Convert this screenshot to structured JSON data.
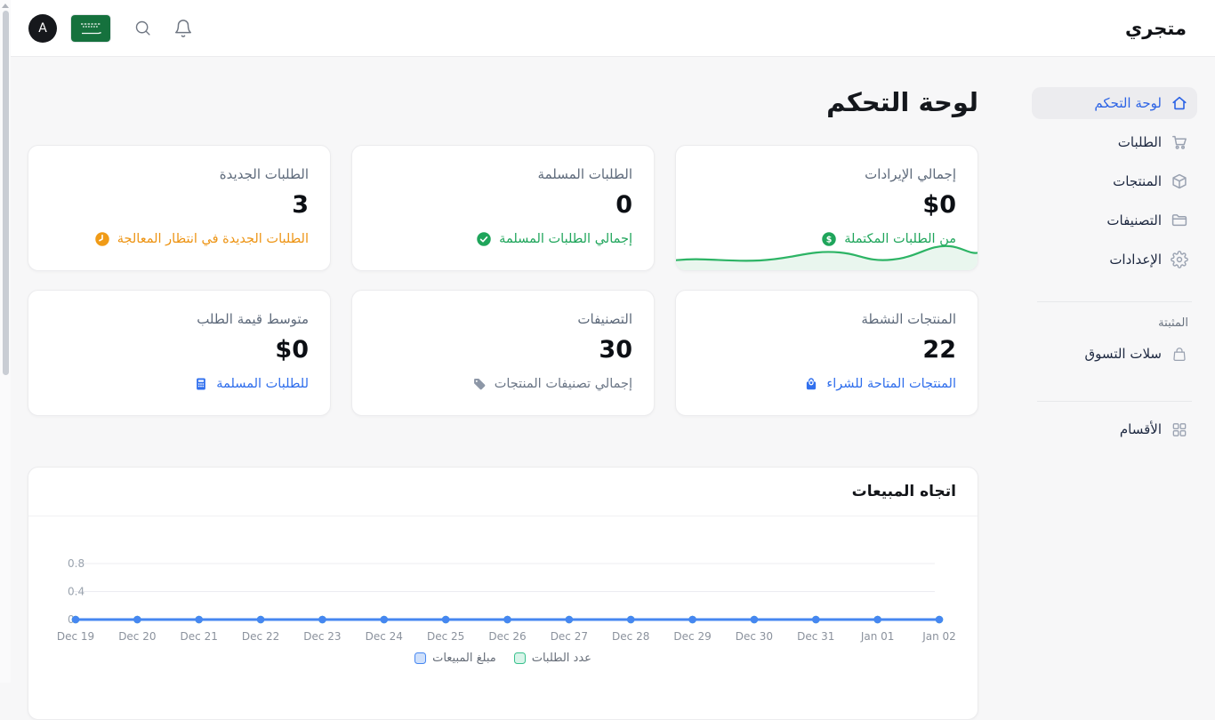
{
  "topbar": {
    "store_title": "متجري",
    "avatar_letter": "A",
    "flag": "saudi-arabia"
  },
  "sidebar": {
    "items": [
      {
        "label": "لوحة التحكم",
        "icon": "home",
        "active": true
      },
      {
        "label": "الطلبات",
        "icon": "cart",
        "active": false
      },
      {
        "label": "المنتجات",
        "icon": "box",
        "active": false
      },
      {
        "label": "التصنيفات",
        "icon": "folder",
        "active": false
      },
      {
        "label": "الإعدادات",
        "icon": "gear",
        "active": false
      }
    ],
    "pinned_section_label": "المثبتة",
    "pinned_items": [
      {
        "label": "سلات التسوق",
        "icon": "shopping-bag"
      }
    ],
    "bottom_items": [
      {
        "label": "الأقسام",
        "icon": "grid"
      }
    ]
  },
  "page": {
    "title": "لوحة التحكم"
  },
  "stat_cards": [
    {
      "title": "إجمالي الإيرادات",
      "value": "$0",
      "subtitle": "من الطلبات المكتملة",
      "icon": "dollar-circle",
      "accent": "#1fa55b"
    },
    {
      "title": "الطلبات المسلمة",
      "value": "0",
      "subtitle": "إجمالي الطلبات المسلمة",
      "icon": "check-circle",
      "accent": "#1fa55b"
    },
    {
      "title": "الطلبات الجديدة",
      "value": "3",
      "subtitle": "الطلبات الجديدة في انتظار المعالجة",
      "icon": "clock",
      "accent": "#ed9414"
    },
    {
      "title": "المنتجات النشطة",
      "value": "22",
      "subtitle": "المنتجات المتاحة للشراء",
      "icon": "bag-filled",
      "accent": "#2f6eec"
    },
    {
      "title": "التصنيفات",
      "value": "30",
      "subtitle": "إجمالي تصنيفات المنتجات",
      "icon": "tag",
      "accent": "#6b7686"
    },
    {
      "title": "متوسط قيمة الطلب",
      "value": "$0",
      "subtitle": "للطلبات المسلمة",
      "icon": "calculator",
      "accent": "#2f6eec"
    }
  ],
  "chart_data": {
    "type": "line",
    "title": "اتجاه المبيعات",
    "x": [
      "Dec 19",
      "Dec 20",
      "Dec 21",
      "Dec 22",
      "Dec 23",
      "Dec 24",
      "Dec 25",
      "Dec 26",
      "Dec 27",
      "Dec 28",
      "Dec 29",
      "Dec 30",
      "Dec 31",
      "Jan 01",
      "Jan 02"
    ],
    "series": [
      {
        "name": "مبلغ المبيعات",
        "color": "#4687f1",
        "fill": "#cfe0fb",
        "values": [
          0,
          0,
          0,
          0,
          0,
          0,
          0,
          0,
          0,
          0,
          0,
          0,
          0,
          0,
          0
        ]
      },
      {
        "name": "عدد الطلبات",
        "color": "#38c18d",
        "fill": "#d8f4e9",
        "values": [
          0,
          0,
          0,
          0,
          0,
          0,
          0,
          0,
          0,
          0,
          0,
          0,
          0,
          0,
          0
        ]
      }
    ],
    "yticks": [
      0,
      0.4,
      0.8
    ],
    "ylim": [
      0,
      0.93
    ],
    "grid": true,
    "legend_position": "bottom"
  }
}
